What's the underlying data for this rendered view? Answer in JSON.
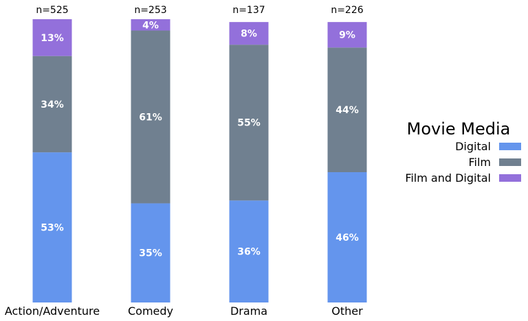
{
  "chart_data": {
    "type": "bar",
    "stacked": true,
    "categories": [
      "Action/Adventure",
      "Comedy",
      "Drama",
      "Other"
    ],
    "counts": [
      "n=525",
      "n=253",
      "n=137",
      "n=226"
    ],
    "series": [
      {
        "name": "Digital",
        "color": "#6495ED",
        "values": [
          53,
          35,
          36,
          46
        ]
      },
      {
        "name": "Film",
        "color": "#708090",
        "values": [
          34,
          61,
          55,
          44
        ]
      },
      {
        "name": "Film and Digital",
        "color": "#9370DB",
        "values": [
          13,
          4,
          8,
          9
        ]
      }
    ],
    "value_suffix": "%",
    "ylim": [
      0,
      100
    ],
    "grid": false,
    "legend": {
      "title": "Movie Media",
      "placement": "right"
    }
  }
}
